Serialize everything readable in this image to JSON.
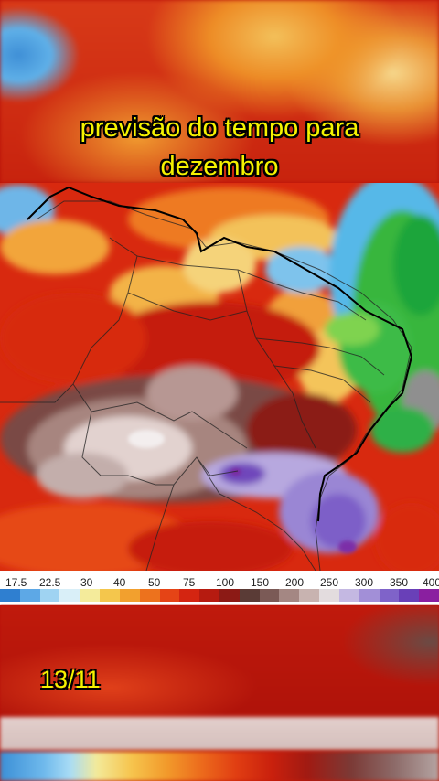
{
  "caption": {
    "line1": "previsão do tempo para",
    "line2": "dezembro"
  },
  "date_label": "13/11",
  "legend": {
    "ticks": [
      "17.5",
      "22.5",
      "30",
      "40",
      "50",
      "75",
      "100",
      "150",
      "200",
      "250",
      "300",
      "350",
      "400"
    ],
    "colors": [
      "#2f7fd0",
      "#5da8e6",
      "#9fd3f2",
      "#d9eff8",
      "#f4eb9b",
      "#f4c64c",
      "#f2a02e",
      "#ed721d",
      "#e54416",
      "#d42511",
      "#b61b10",
      "#8c1a15",
      "#5a3b36",
      "#7b5a56",
      "#a48783",
      "#c8b3b0",
      "#e3dcde",
      "#c4b8e2",
      "#a28fd7",
      "#7f63c9",
      "#6940b8",
      "#8a1fa0"
    ]
  }
}
